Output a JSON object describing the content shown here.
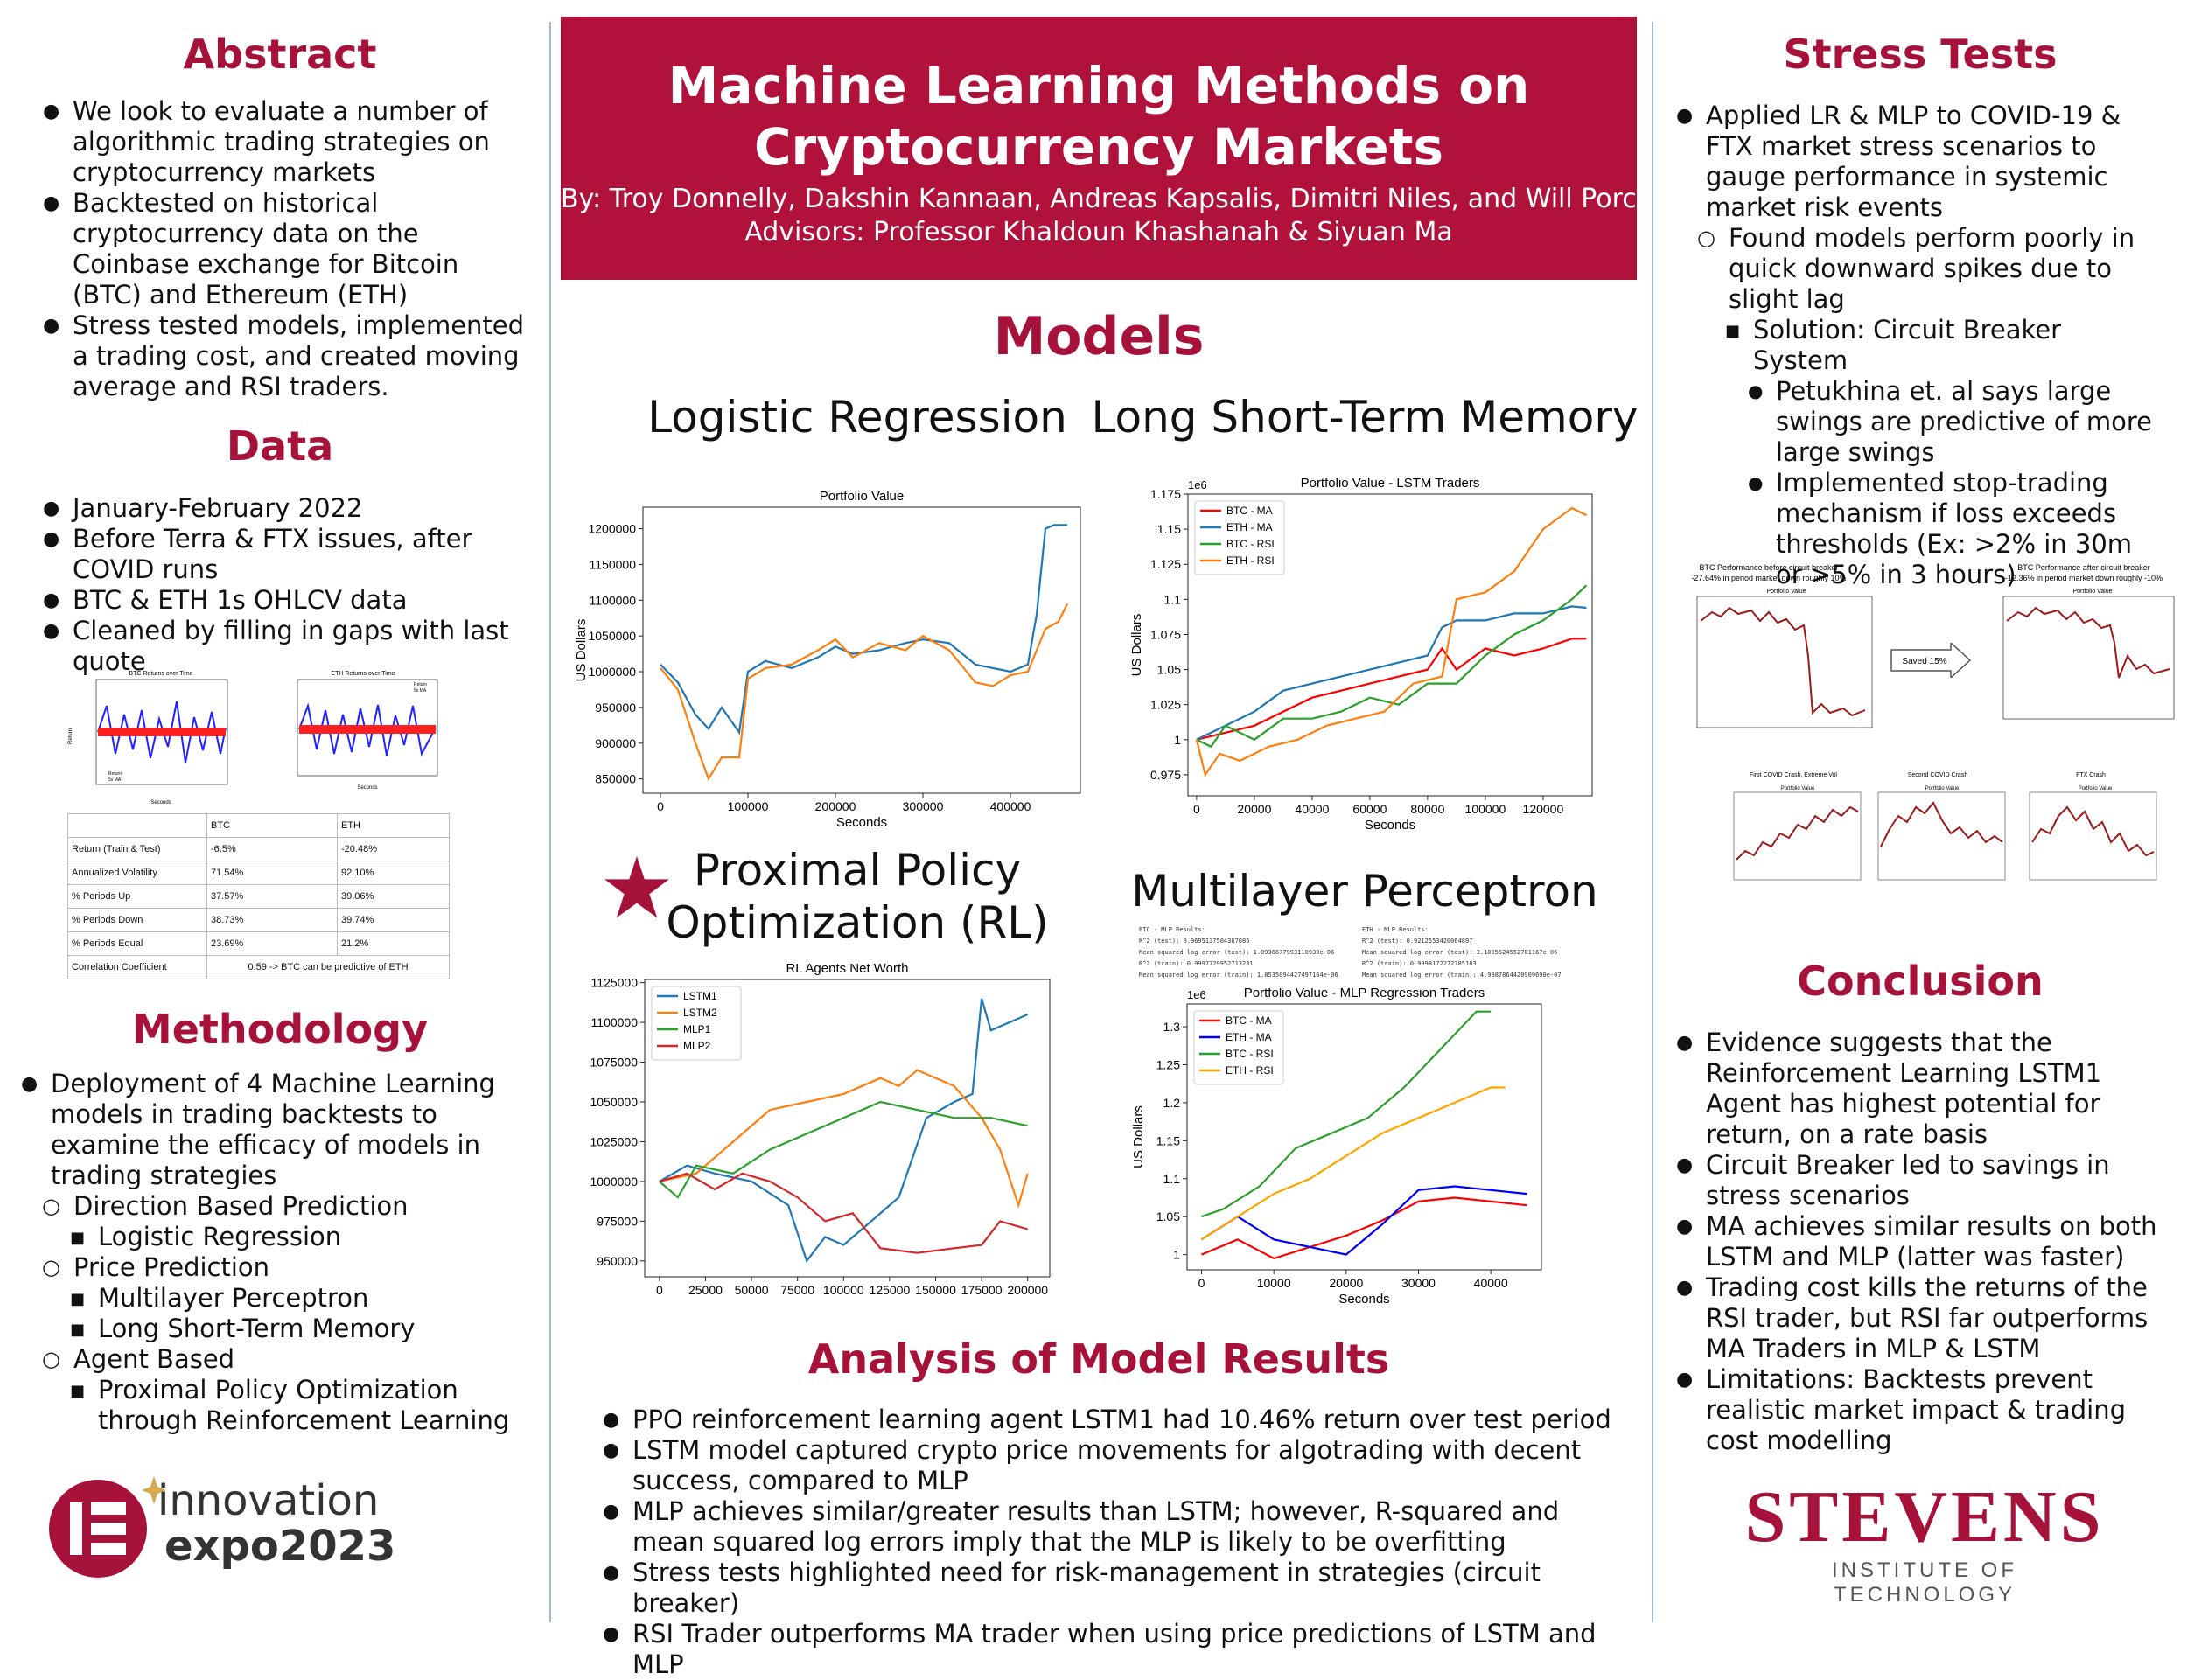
{
  "header": {
    "title_line1": "Machine Learning Methods on",
    "title_line2": "Cryptocurrency Markets",
    "authors": "By: Troy Donnelly, Dakshin Kannaan, Andreas Kapsalis, Dimitri Niles, and Will Porcello",
    "advisors": "Advisors: Professor Khaldoun Khashanah & Siyuan Ma"
  },
  "abstract": {
    "title": "Abstract",
    "items": [
      {
        "level": 0,
        "text": "We look to evaluate a number of algorithmic trading strategies on cryptocurrency markets"
      },
      {
        "level": 0,
        "text": "Backtested on historical cryptocurrency data on the Coinbase exchange for Bitcoin (BTC) and Ethereum (ETH)"
      },
      {
        "level": 0,
        "text": "Stress tested models, implemented a trading cost, and created moving average and RSI traders."
      }
    ]
  },
  "data_section": {
    "title": "Data",
    "items": [
      {
        "level": 0,
        "text": "January-February 2022"
      },
      {
        "level": 0,
        "text": "Before Terra & FTX issues, after COVID runs"
      },
      {
        "level": 0,
        "text": "BTC & ETH 1s OHLCV data"
      },
      {
        "level": 0,
        "text": "Cleaned by filling in gaps with last quote"
      }
    ],
    "mini_charts": [
      {
        "title": "BTC Returns over Time",
        "legend": [
          "Return",
          "5s MA"
        ],
        "xlabel": "Seconds",
        "ylabel": "Return"
      },
      {
        "title": "ETH Returns over Time",
        "legend": [
          "Return",
          "5s MA"
        ],
        "xlabel": "Seconds",
        "ylabel": "Return"
      }
    ],
    "table": {
      "headers": [
        "",
        "BTC",
        "ETH"
      ],
      "rows": [
        [
          "Return (Train & Test)",
          "-6.5%",
          "-20.48%"
        ],
        [
          "Annualized Volatility",
          "71.54%",
          "92.10%"
        ],
        [
          "% Periods Up",
          "37.57%",
          "39.06%"
        ],
        [
          "% Periods Down",
          "38.73%",
          "39.74%"
        ],
        [
          "% Periods Equal",
          "23.69%",
          "21.2%"
        ]
      ],
      "corr_label": "Correlation Coefficient",
      "corr_value": "0.59 -> BTC can be predictive of ETH"
    }
  },
  "methodology": {
    "title": "Methodology",
    "items": [
      {
        "level": 0,
        "text": "Deployment of 4 Machine Learning models in trading backtests to examine the efficacy of models in trading strategies"
      },
      {
        "level": 1,
        "text": "Direction Based Prediction"
      },
      {
        "level": 2,
        "text": "Logistic Regression"
      },
      {
        "level": 1,
        "text": "Price Prediction"
      },
      {
        "level": 2,
        "text": "Multilayer Perceptron"
      },
      {
        "level": 2,
        "text": "Long Short-Term Memory"
      },
      {
        "level": 1,
        "text": "Agent Based"
      },
      {
        "level": 2,
        "text": "Proximal Policy Optimization through Reinforcement Learning"
      }
    ]
  },
  "logos": {
    "innovation_line1": "innovation",
    "innovation_line2": "expo2023",
    "stevens_name": "STEVENS",
    "stevens_sub": "INSTITUTE OF TECHNOLOGY"
  },
  "models": {
    "title": "Models",
    "lr_label": "Logistic Regression",
    "lstm_label": "Long Short-Term Memory",
    "ppo_label_line1": "Proximal Policy",
    "ppo_label_line2": "Optimization (RL)",
    "mlp_label": "Multilayer Perceptron",
    "btc_results_text": [
      "BTC - MLP Results:",
      "R^2 (test): 0.9695137504367085",
      "Mean squared log error (test): 1.0936677993110930e-06",
      "R^2 (train): 0.9997729952713231",
      "Mean squared log error (train): 1.8535094427497164e-06"
    ],
    "eth_results_text": [
      "ETH - MLP Results:",
      "R^2 (test): 0.9212553420064897",
      "Mean squared log error (test): 3.1095624552781167e-06",
      "R^2 (train): 0.9998172272785183",
      "Mean squared log error (train): 4.9987864420909690e-07"
    ]
  },
  "analysis": {
    "title": "Analysis of Model Results",
    "items": [
      {
        "level": 0,
        "text": "PPO reinforcement learning agent LSTM1 had 10.46% return over test period"
      },
      {
        "level": 0,
        "text": "LSTM model captured crypto price movements for algotrading with decent success, compared to MLP"
      },
      {
        "level": 0,
        "text": "MLP achieves similar/greater results than LSTM; however, R-squared and mean squared log errors imply that the MLP is likely to be overfitting"
      },
      {
        "level": 0,
        "text": "Stress tests highlighted need for risk-management in strategies (circuit breaker)"
      },
      {
        "level": 0,
        "text": "RSI Trader outperforms MA trader when using price predictions of LSTM and MLP"
      }
    ]
  },
  "stress": {
    "title": "Stress Tests",
    "items": [
      {
        "level": 0,
        "text": "Applied LR & MLP to COVID-19 & FTX market stress scenarios to gauge performance in systemic market risk events"
      },
      {
        "level": 1,
        "text": "Found models perform poorly in quick downward spikes due to slight lag"
      },
      {
        "level": 2,
        "text": "Solution: Circuit Breaker System"
      },
      {
        "level": 3,
        "text": "Petukhina et. al says large swings are predictive of more large swings"
      },
      {
        "level": 3,
        "text": "Implemented stop-trading mechanism if loss exceeds thresholds (Ex:  >2% in 30m or >5% in 3 hours)"
      }
    ],
    "before_title": "BTC Performance before circuit breaker",
    "before_sub": "-27.64% in period market down roughly 10%",
    "after_title": "BTC Performance after circuit breaker",
    "after_sub": "-12.36% in period market down roughly -10%",
    "saved": "Saved 15%",
    "mini_titles": [
      "First COVID Crash, Extreme Vol",
      "Second COVID Crash",
      "FTX Crash"
    ],
    "mini_subtitle": "Portfolio Value"
  },
  "conclusion": {
    "title": "Conclusion",
    "items": [
      {
        "level": 0,
        "text": "Evidence suggests that the Reinforcement Learning LSTM1 Agent has highest potential for return, on a rate basis"
      },
      {
        "level": 0,
        "text": "Circuit Breaker led to savings in stress scenarios"
      },
      {
        "level": 0,
        "text": "MA achieves similar results on both LSTM and MLP (latter was faster)"
      },
      {
        "level": 0,
        "text": "Trading cost kills the returns of the RSI trader, but RSI far outperforms MA Traders in MLP & LSTM"
      },
      {
        "level": 0,
        "text": "Limitations: Backtests prevent realistic market impact & trading cost modelling"
      }
    ]
  },
  "chart_data": [
    {
      "id": "lr",
      "type": "line",
      "title": "Portfolio Value",
      "xlabel": "Seconds",
      "ylabel": "US Dollars",
      "xlim": [
        -20000,
        480000
      ],
      "ylim": [
        830000,
        1230000
      ],
      "xticks": [
        0,
        100000,
        200000,
        300000,
        400000
      ],
      "yticks": [
        850000,
        900000,
        950000,
        1000000,
        1050000,
        1100000,
        1150000,
        1200000
      ],
      "series": [
        {
          "color": "#1f77b4",
          "x": [
            0,
            20000,
            40000,
            55000,
            70000,
            90000,
            100000,
            120000,
            150000,
            180000,
            200000,
            220000,
            250000,
            280000,
            300000,
            330000,
            360000,
            380000,
            400000,
            420000,
            430000,
            440000,
            450000,
            465000
          ],
          "y": [
            1010000,
            985000,
            940000,
            920000,
            950000,
            915000,
            1000000,
            1015000,
            1005000,
            1020000,
            1035000,
            1025000,
            1030000,
            1040000,
            1045000,
            1040000,
            1010000,
            1005000,
            1000000,
            1010000,
            1080000,
            1200000,
            1205000,
            1205000
          ]
        },
        {
          "color": "#ff7f0e",
          "x": [
            0,
            20000,
            40000,
            55000,
            70000,
            90000,
            100000,
            120000,
            150000,
            180000,
            200000,
            220000,
            250000,
            280000,
            300000,
            330000,
            360000,
            380000,
            400000,
            420000,
            440000,
            455000,
            465000
          ],
          "y": [
            1005000,
            975000,
            900000,
            850000,
            880000,
            880000,
            990000,
            1005000,
            1010000,
            1030000,
            1045000,
            1020000,
            1040000,
            1030000,
            1050000,
            1030000,
            985000,
            980000,
            995000,
            1000000,
            1060000,
            1070000,
            1095000
          ]
        }
      ]
    },
    {
      "id": "lstm",
      "type": "line",
      "title": "Portfolio Value - LSTM Traders",
      "xlabel": "Seconds",
      "ylabel": "US Dollars",
      "scale_note": "1e6",
      "xlim": [
        -3000,
        137000
      ],
      "ylim": [
        0.96,
        1.175
      ],
      "xticks": [
        0,
        20000,
        40000,
        60000,
        80000,
        100000,
        120000
      ],
      "yticks": [
        0.975,
        1.0,
        1.025,
        1.05,
        1.075,
        1.1,
        1.125,
        1.15,
        1.175
      ],
      "series": [
        {
          "name": "BTC - MA",
          "color": "#ff0000",
          "x": [
            0,
            10000,
            20000,
            30000,
            40000,
            50000,
            60000,
            70000,
            80000,
            85000,
            90000,
            100000,
            110000,
            120000,
            130000,
            135000
          ],
          "y": [
            1.0,
            1.005,
            1.01,
            1.02,
            1.03,
            1.035,
            1.04,
            1.045,
            1.05,
            1.065,
            1.05,
            1.065,
            1.06,
            1.065,
            1.072,
            1.072
          ]
        },
        {
          "name": "ETH - MA",
          "color": "#1f77b4",
          "x": [
            0,
            10000,
            20000,
            30000,
            40000,
            50000,
            60000,
            70000,
            80000,
            85000,
            90000,
            100000,
            110000,
            120000,
            130000,
            135000
          ],
          "y": [
            1.0,
            1.01,
            1.02,
            1.035,
            1.04,
            1.045,
            1.05,
            1.055,
            1.06,
            1.08,
            1.085,
            1.085,
            1.09,
            1.09,
            1.095,
            1.094
          ]
        },
        {
          "name": "BTC - RSI",
          "color": "#2ca02c",
          "x": [
            0,
            5000,
            10000,
            20000,
            30000,
            40000,
            50000,
            60000,
            70000,
            80000,
            90000,
            100000,
            110000,
            120000,
            130000,
            135000
          ],
          "y": [
            1.0,
            0.995,
            1.01,
            1.0,
            1.015,
            1.015,
            1.02,
            1.03,
            1.025,
            1.04,
            1.04,
            1.06,
            1.075,
            1.085,
            1.1,
            1.11
          ]
        },
        {
          "name": "ETH - RSI",
          "color": "#ff7f0e",
          "x": [
            0,
            3000,
            8000,
            15000,
            25000,
            35000,
            45000,
            55000,
            65000,
            75000,
            85000,
            90000,
            100000,
            110000,
            120000,
            130000,
            135000
          ],
          "y": [
            1.0,
            0.975,
            0.99,
            0.985,
            0.995,
            1.0,
            1.01,
            1.015,
            1.02,
            1.04,
            1.045,
            1.1,
            1.105,
            1.12,
            1.15,
            1.165,
            1.16
          ]
        }
      ]
    },
    {
      "id": "ppo",
      "type": "line",
      "title": "RL Agents Net Worth",
      "xlim": [
        -8000,
        212000
      ],
      "ylim": [
        940000,
        1127000
      ],
      "xticks": [
        0,
        25000,
        50000,
        75000,
        100000,
        125000,
        150000,
        175000,
        200000
      ],
      "yticks": [
        950000,
        975000,
        1000000,
        1025000,
        1050000,
        1075000,
        1100000,
        1125000
      ],
      "series": [
        {
          "name": "LSTM1",
          "color": "#1f77b4",
          "x": [
            0,
            15000,
            30000,
            50000,
            70000,
            80000,
            90000,
            100000,
            115000,
            130000,
            145000,
            160000,
            170000,
            175000,
            180000,
            190000,
            200000
          ],
          "y": [
            1000000,
            1010000,
            1005000,
            1000000,
            985000,
            950000,
            965000,
            960000,
            975000,
            990000,
            1040000,
            1050000,
            1055000,
            1115000,
            1095000,
            1100000,
            1105000
          ]
        },
        {
          "name": "LSTM2",
          "color": "#ff7f0e",
          "x": [
            0,
            20000,
            40000,
            60000,
            80000,
            100000,
            120000,
            130000,
            140000,
            160000,
            175000,
            185000,
            195000,
            200000
          ],
          "y": [
            1000000,
            1005000,
            1025000,
            1045000,
            1050000,
            1055000,
            1065000,
            1060000,
            1070000,
            1060000,
            1040000,
            1020000,
            985000,
            1005000
          ]
        },
        {
          "name": "MLP1",
          "color": "#2ca02c",
          "x": [
            0,
            10000,
            20000,
            40000,
            60000,
            80000,
            100000,
            120000,
            140000,
            160000,
            180000,
            200000
          ],
          "y": [
            1000000,
            990000,
            1010000,
            1005000,
            1020000,
            1030000,
            1040000,
            1050000,
            1045000,
            1040000,
            1040000,
            1035000
          ]
        },
        {
          "name": "MLP2",
          "color": "#d62728",
          "x": [
            0,
            15000,
            30000,
            45000,
            60000,
            75000,
            90000,
            105000,
            120000,
            140000,
            160000,
            175000,
            185000,
            200000
          ],
          "y": [
            1000000,
            1005000,
            995000,
            1005000,
            1000000,
            990000,
            975000,
            980000,
            958000,
            955000,
            958000,
            960000,
            975000,
            970000
          ]
        }
      ]
    },
    {
      "id": "mlp",
      "type": "line",
      "title": "Portfolio Value - MLP Regression Traders",
      "xlabel": "Seconds",
      "ylabel": "US Dollars",
      "scale_note": "1e6",
      "xlim": [
        -2000,
        47000
      ],
      "ylim": [
        0.98,
        1.33
      ],
      "xticks": [
        0,
        10000,
        20000,
        30000,
        40000
      ],
      "yticks": [
        1.0,
        1.05,
        1.1,
        1.15,
        1.2,
        1.25,
        1.3
      ],
      "series": [
        {
          "name": "BTC - MA",
          "color": "#ff0000",
          "x": [
            0,
            5000,
            10000,
            15000,
            20000,
            25000,
            30000,
            35000,
            40000,
            45000
          ],
          "y": [
            1.0,
            1.02,
            0.995,
            1.01,
            1.025,
            1.045,
            1.07,
            1.075,
            1.07,
            1.065
          ]
        },
        {
          "name": "ETH - MA",
          "color": "#0000ff",
          "x": [
            0,
            5000,
            10000,
            15000,
            20000,
            25000,
            30000,
            35000,
            40000,
            45000
          ],
          "y": [
            1.02,
            1.05,
            1.02,
            1.01,
            1.0,
            1.04,
            1.085,
            1.09,
            1.085,
            1.08
          ]
        },
        {
          "name": "BTC - RSI",
          "color": "#2ca02c",
          "x": [
            0,
            3000,
            8000,
            13000,
            18000,
            23000,
            28000,
            33000,
            38000,
            40000
          ],
          "y": [
            1.05,
            1.06,
            1.09,
            1.14,
            1.16,
            1.18,
            1.22,
            1.27,
            1.32,
            1.32
          ]
        },
        {
          "name": "ETH - RSI",
          "color": "#ffa500",
          "x": [
            0,
            5000,
            10000,
            15000,
            20000,
            25000,
            30000,
            35000,
            40000,
            42000
          ],
          "y": [
            1.02,
            1.05,
            1.08,
            1.1,
            1.13,
            1.16,
            1.18,
            1.2,
            1.22,
            1.22
          ]
        }
      ]
    }
  ]
}
